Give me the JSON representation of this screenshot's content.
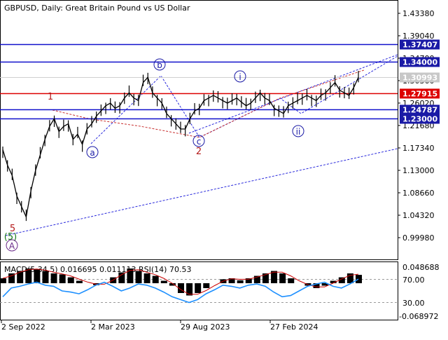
{
  "header": {
    "symbol_title": "GBPUSD, Daily:  Great Britain Pound vs US Dollar"
  },
  "indicator": {
    "title": "MACD(5,34,5) 0.016695 0.011113 RSI(14) 70.53",
    "axis_labels": [
      "0.048688",
      "70.00",
      "30.00",
      "-0.068972"
    ]
  },
  "colors": {
    "candles": "#000000",
    "blue_level": "#1111cc",
    "red_level": "#dd0000",
    "blue_box": "#1a1aa6",
    "red_box": "#dd0000",
    "gray_box": "#c8c8c8",
    "wave_lines_blue": "#2a2adc",
    "wave_lines_red": "#c83030",
    "rsi_line": "#1e90ff",
    "macd_hist": "#000000",
    "macd_signal": "#cc0000"
  },
  "chart_data": {
    "type": "line",
    "title": "GBPUSD, Daily:  Great Britain Pound vs US Dollar",
    "x_tick_labels": [
      "2 Sep 2022",
      "2 Mar 2023",
      "29 Aug 2023",
      "27 Feb 2024"
    ],
    "y_tick_labels": [
      "1.43380",
      "1.39040",
      "1.34700",
      "1.30360",
      "1.26020",
      "1.21680",
      "1.17340",
      "1.13000",
      "1.08660",
      "1.04320",
      "0.99980"
    ],
    "ylim": [
      0.9998,
      1.4338
    ],
    "grid": false,
    "price_series": {
      "name": "GBPUSD",
      "values": [
        1.17,
        1.14,
        1.12,
        1.08,
        1.06,
        1.04,
        1.09,
        1.13,
        1.16,
        1.19,
        1.215,
        1.23,
        1.205,
        1.215,
        1.22,
        1.19,
        1.2,
        1.18,
        1.21,
        1.22,
        1.235,
        1.245,
        1.255,
        1.26,
        1.25,
        1.255,
        1.27,
        1.28,
        1.27,
        1.265,
        1.3,
        1.31,
        1.28,
        1.27,
        1.26,
        1.24,
        1.23,
        1.22,
        1.21,
        1.21,
        1.23,
        1.245,
        1.25,
        1.265,
        1.27,
        1.275,
        1.27,
        1.265,
        1.26,
        1.265,
        1.27,
        1.262,
        1.255,
        1.26,
        1.27,
        1.28,
        1.27,
        1.265,
        1.25,
        1.245,
        1.24,
        1.255,
        1.26,
        1.265,
        1.27,
        1.275,
        1.27,
        1.265,
        1.275,
        1.28,
        1.29,
        1.3,
        1.285,
        1.28,
        1.275,
        1.29,
        1.31
      ]
    },
    "horizontal_levels": [
      {
        "value": 1.37407,
        "label": "1.37407",
        "color": "blue"
      },
      {
        "value": 1.34,
        "label": "1.34000",
        "color": "blue"
      },
      {
        "value": 1.30993,
        "label": "1.30993",
        "color": "gray"
      },
      {
        "value": 1.27915,
        "label": "1.27915",
        "color": "red"
      },
      {
        "value": 1.24787,
        "label": "1.24787",
        "color": "blue"
      },
      {
        "value": 1.23,
        "label": "1.23000",
        "color": "blue"
      }
    ],
    "wave_labels": [
      {
        "text": "b",
        "style": "blue-circle"
      },
      {
        "text": "i",
        "style": "blue-circle"
      },
      {
        "text": "a",
        "style": "blue-circle"
      },
      {
        "text": "c",
        "style": "blue-circle"
      },
      {
        "text": "ii",
        "style": "blue-circle"
      },
      {
        "text": "1",
        "style": "red"
      },
      {
        "text": "2",
        "style": "red"
      },
      {
        "text": "5",
        "style": "red"
      },
      {
        "text": "5",
        "style": "green-paren"
      },
      {
        "text": "A",
        "style": "purple-circle"
      }
    ],
    "indicator_series": [
      {
        "name": "MACD(5,34,5)",
        "values": [
          0.01,
          0.02,
          0.025,
          0.03,
          0.028,
          0.025,
          0.02,
          0.018,
          0.012,
          0.005,
          0.0,
          -0.004,
          0.0,
          0.012,
          0.022,
          0.03,
          0.025,
          0.02,
          0.015,
          0.005,
          -0.005,
          -0.02,
          -0.025,
          -0.02,
          -0.01,
          0.0,
          0.008,
          0.01,
          0.006,
          0.01,
          0.015,
          0.02,
          0.025,
          0.02,
          0.01,
          0.0,
          -0.005,
          -0.01,
          -0.005,
          0.005,
          0.012,
          0.02,
          0.017
        ]
      },
      {
        "name": "RSI(14)",
        "values": [
          40,
          55,
          58,
          62,
          65,
          60,
          58,
          50,
          48,
          45,
          52,
          60,
          65,
          58,
          50,
          55,
          62,
          60,
          55,
          48,
          40,
          35,
          30,
          35,
          45,
          52,
          60,
          58,
          55,
          60,
          62,
          58,
          48,
          40,
          42,
          50,
          58,
          62,
          65,
          58,
          55,
          62,
          70.5
        ]
      }
    ]
  }
}
